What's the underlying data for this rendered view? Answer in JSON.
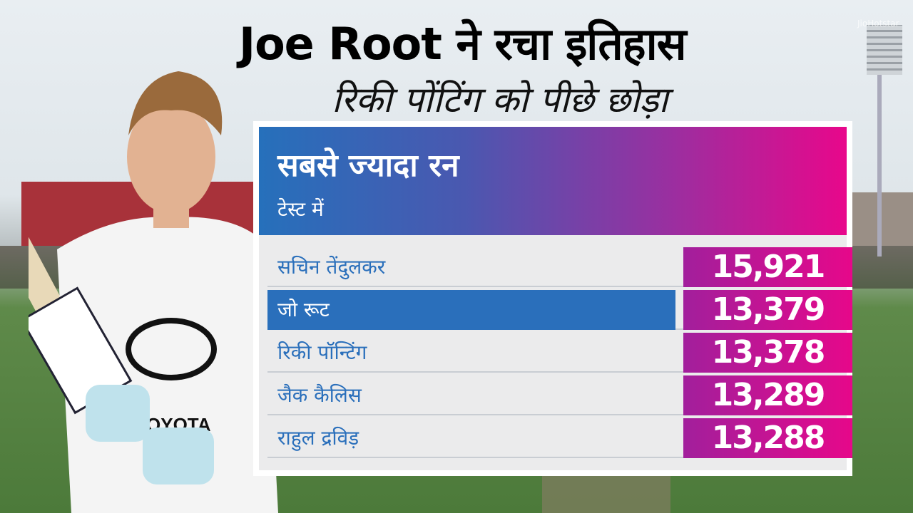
{
  "title": "Joe Root ने रचा इतिहास",
  "subtitle": "रिकी पोंटिंग को पीछे छोड़ा",
  "watermark": "JioHotstar",
  "card": {
    "title": "सबसे ज्यादा रन",
    "subtitle": "टेस्ट में",
    "rows": [
      {
        "name": "सचिन तेंदुलकर",
        "runs": "15,921"
      },
      {
        "name": "जो रूट",
        "runs": "13,379",
        "highlighted": true
      },
      {
        "name": "रिकी पॉन्टिंग",
        "runs": "13,378"
      },
      {
        "name": "जैक कैलिस",
        "runs": "13,289"
      },
      {
        "name": "राहुल द्रविड़",
        "runs": "13,288"
      }
    ]
  },
  "colors": {
    "blue": "#2a6fbb",
    "magenta": "#e8078b",
    "purple": "#a21f9c"
  }
}
